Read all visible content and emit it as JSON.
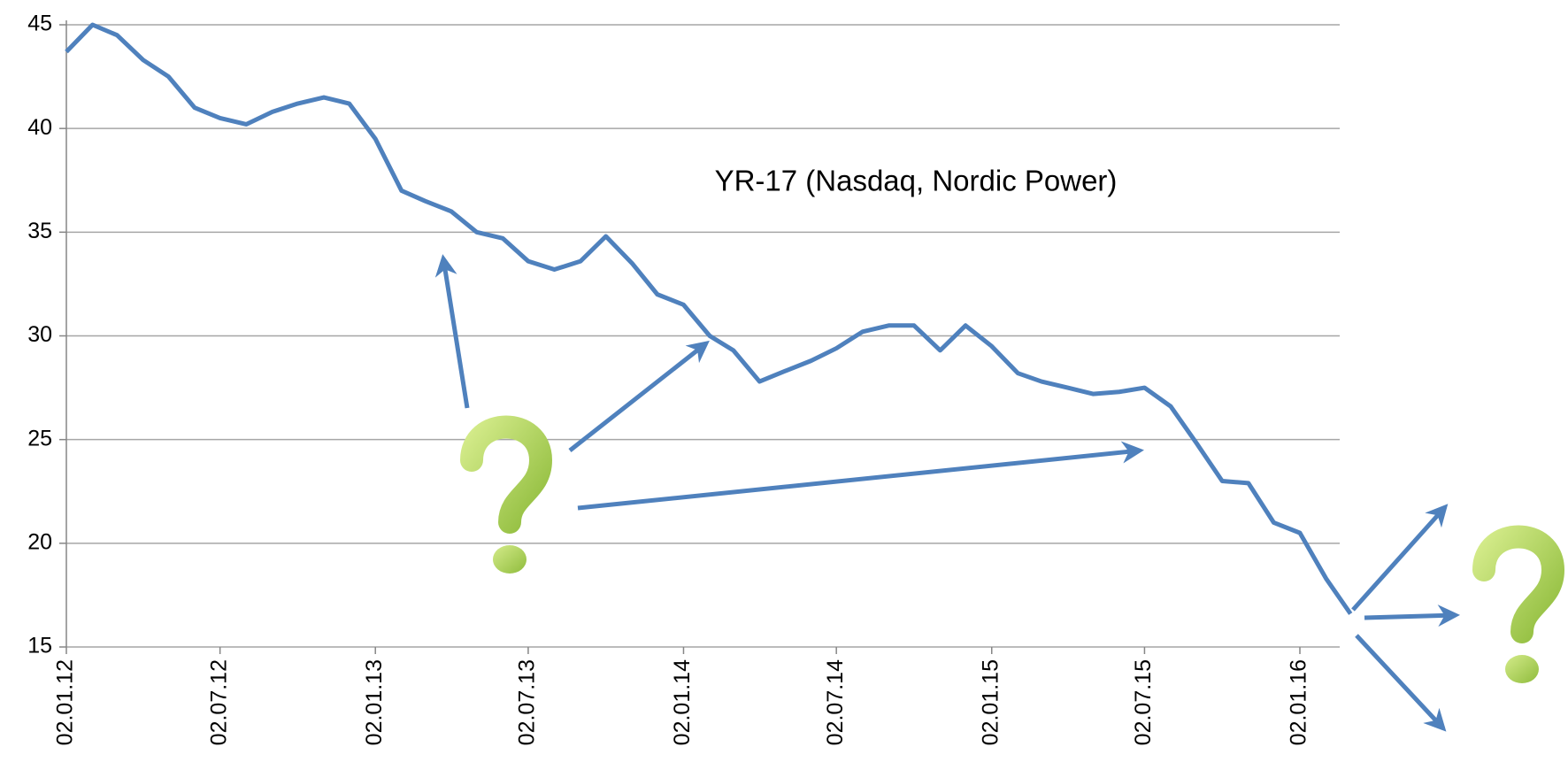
{
  "chart_data": {
    "type": "line",
    "annotation": "YR-17 (Nasdaq, Nordic Power)",
    "x": [
      "02.01.12",
      "02.02.12",
      "02.03.12",
      "02.04.12",
      "02.05.12",
      "02.06.12",
      "02.07.12",
      "02.08.12",
      "02.09.12",
      "02.10.12",
      "02.11.12",
      "02.12.12",
      "02.01.13",
      "02.02.13",
      "02.03.13",
      "02.04.13",
      "02.05.13",
      "02.06.13",
      "02.07.13",
      "02.08.13",
      "02.09.13",
      "02.10.13",
      "02.11.13",
      "02.12.13",
      "02.01.14",
      "02.02.14",
      "02.03.14",
      "02.04.14",
      "02.05.14",
      "02.06.14",
      "02.07.14",
      "02.08.14",
      "02.09.14",
      "02.10.14",
      "02.11.14",
      "02.12.14",
      "02.01.15",
      "02.02.15",
      "02.03.15",
      "02.04.15",
      "02.05.15",
      "02.06.15",
      "02.07.15",
      "02.08.15",
      "02.09.15",
      "02.10.15",
      "02.11.15",
      "02.12.15",
      "02.01.16",
      "02.02.16",
      "02.03.16"
    ],
    "series": [
      {
        "name": "YR-17",
        "color": "#4f81bd",
        "values": [
          43.7,
          45.0,
          44.5,
          43.3,
          42.5,
          41.0,
          40.5,
          40.2,
          40.8,
          41.2,
          41.5,
          41.2,
          39.5,
          37.0,
          36.5,
          36.0,
          35.0,
          34.7,
          33.6,
          33.2,
          33.6,
          34.8,
          33.5,
          32.0,
          31.5,
          30.0,
          29.3,
          27.8,
          28.3,
          28.8,
          29.4,
          30.2,
          30.5,
          30.5,
          29.3,
          30.5,
          29.5,
          28.2,
          27.8,
          27.5,
          27.2,
          27.3,
          27.5,
          26.6,
          24.8,
          23.0,
          22.9,
          21.0,
          20.5,
          18.3,
          16.6
        ]
      }
    ],
    "xticks": [
      "02.01.12",
      "02.07.12",
      "02.01.13",
      "02.07.13",
      "02.01.14",
      "02.07.14",
      "02.01.15",
      "02.07.15",
      "02.01.16"
    ],
    "ylim": [
      15,
      45
    ],
    "yticks": [
      15,
      20,
      25,
      30,
      35,
      40,
      45
    ],
    "grid": true
  }
}
